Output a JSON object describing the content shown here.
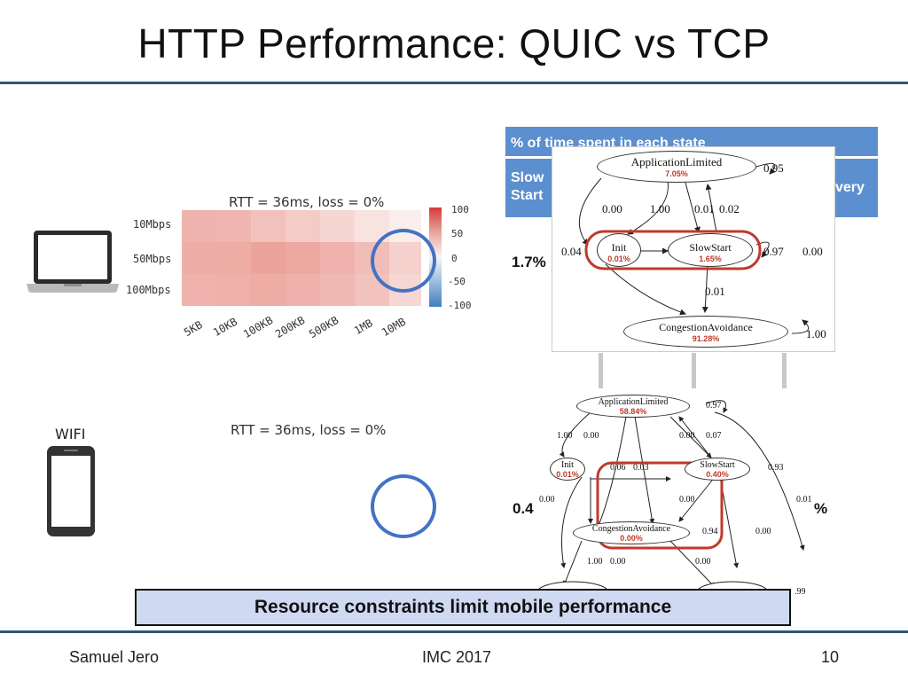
{
  "slide": {
    "title": "HTTP Performance: QUIC vs TCP",
    "footer": {
      "author": "Samuel Jero",
      "venue": "IMC 2017",
      "page": "10"
    },
    "callout": "Resource constraints limit mobile performance"
  },
  "desktop": {
    "rtt_label": "RTT = 36ms, loss = 0%",
    "rows": [
      "10Mbps",
      "50Mbps",
      "100Mbps"
    ],
    "cols": [
      "5KB",
      "10KB",
      "100KB",
      "200KB",
      "500KB",
      "1MB",
      "10MB"
    ],
    "legend_ticks": [
      "100",
      "50",
      "0",
      "-50",
      "-100"
    ]
  },
  "mobile": {
    "network_label": "WIFI",
    "rtt_label": "RTT = 36ms, loss = 0%"
  },
  "state_table": {
    "header": "% of time spent in each state",
    "row_left": "Slow\nStart",
    "row_right": "very",
    "value_top": "1.7%",
    "value_bottom_left": "0.4",
    "value_bottom_right": "%"
  },
  "diagram_top": {
    "nodes": {
      "app": {
        "label": "ApplicationLimited",
        "pct": "7.05%"
      },
      "init": {
        "label": "Init",
        "pct": "0.01%"
      },
      "ss": {
        "label": "SlowStart",
        "pct": "1.65%"
      },
      "ca": {
        "label": "CongestionAvoidance",
        "pct": "91.28%"
      }
    },
    "edges": [
      "0.95",
      "0.00",
      "1.00",
      "0.01",
      "0.02",
      "0.04",
      "0.97",
      "0.00",
      "0.01",
      "1.00"
    ]
  },
  "diagram_bottom": {
    "nodes": {
      "app": {
        "label": "ApplicationLimited",
        "pct": "58.84%"
      },
      "init": {
        "label": "Init",
        "pct": "0.01%"
      },
      "ss": {
        "label": "SlowStart",
        "pct": "0.40%"
      },
      "ca": {
        "label": "CongestionAvoidance",
        "pct": "0.00%"
      }
    },
    "edges": [
      "0.97",
      "1.00",
      "0.00",
      "0.00",
      "0.07",
      "0.06",
      "0.03",
      "0.93",
      "0.00",
      "0.00",
      "0.01",
      "0.94",
      "0.00",
      "1.00",
      "0.00",
      "0.00",
      ".99"
    ]
  },
  "colors": {
    "accent_rule": "#2f5674",
    "circle": "#4472c4",
    "table": "#5b8fd0",
    "callout": "#cfd9f2",
    "highlight": "#c0392b"
  }
}
